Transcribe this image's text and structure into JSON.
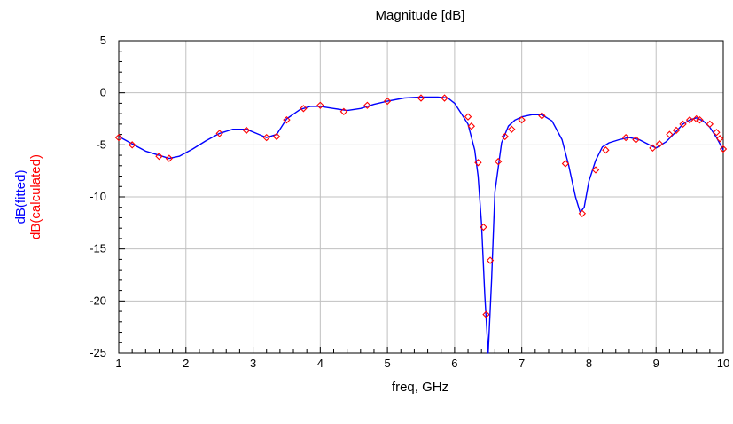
{
  "chart_data": {
    "type": "line",
    "title": "Magnitude [dB]",
    "xlabel": "freq, GHz",
    "ylabel_parts": [
      {
        "text": "dB(fitted)",
        "color": "#0000ff"
      },
      {
        "text": "dB(calculated)",
        "color": "#ff0000"
      }
    ],
    "xlim": [
      1,
      10
    ],
    "ylim": [
      -25,
      5
    ],
    "x_ticks": [
      "1",
      "2",
      "3",
      "4",
      "5",
      "6",
      "7",
      "8",
      "9",
      "10"
    ],
    "y_ticks": [
      "5",
      "0",
      "-5",
      "-10",
      "-15",
      "-20",
      "-25"
    ],
    "grid": true,
    "legend": "none",
    "series": [
      {
        "style": "line",
        "color": "#0000ff",
        "x": [
          1.0,
          1.2,
          1.4,
          1.6,
          1.75,
          1.9,
          2.1,
          2.3,
          2.5,
          2.7,
          2.9,
          3.05,
          3.2,
          3.35,
          3.5,
          3.7,
          3.85,
          4.0,
          4.2,
          4.4,
          4.6,
          4.8,
          5.0,
          5.25,
          5.5,
          5.75,
          5.9,
          6.0,
          6.1,
          6.2,
          6.3,
          6.35,
          6.4,
          6.45,
          6.5,
          6.55,
          6.6,
          6.7,
          6.8,
          6.9,
          7.0,
          7.15,
          7.3,
          7.45,
          7.6,
          7.7,
          7.8,
          7.87,
          7.93,
          8.0,
          8.1,
          8.2,
          8.3,
          8.45,
          8.6,
          8.75,
          8.9,
          9.0,
          9.15,
          9.3,
          9.4,
          9.5,
          9.6,
          9.7,
          9.8,
          9.9,
          10.0
        ],
        "y": [
          -4.2,
          -4.9,
          -5.6,
          -6.0,
          -6.3,
          -6.1,
          -5.4,
          -4.6,
          -3.9,
          -3.5,
          -3.5,
          -3.9,
          -4.3,
          -4.0,
          -2.5,
          -1.6,
          -1.3,
          -1.3,
          -1.5,
          -1.7,
          -1.5,
          -1.1,
          -0.8,
          -0.5,
          -0.4,
          -0.4,
          -0.5,
          -1.0,
          -2.0,
          -3.0,
          -5.5,
          -8.0,
          -12.5,
          -19.5,
          -25.0,
          -18.0,
          -9.5,
          -4.8,
          -3.2,
          -2.6,
          -2.3,
          -2.1,
          -2.1,
          -2.7,
          -4.5,
          -7.0,
          -10.0,
          -11.5,
          -11.0,
          -8.5,
          -6.5,
          -5.2,
          -4.8,
          -4.5,
          -4.3,
          -4.5,
          -5.0,
          -5.3,
          -4.7,
          -3.7,
          -3.0,
          -2.6,
          -2.4,
          -2.7,
          -3.3,
          -4.3,
          -5.5
        ]
      },
      {
        "style": "markers",
        "color": "#ff0000",
        "x": [
          1.0,
          1.2,
          1.6,
          1.75,
          2.5,
          2.9,
          3.2,
          3.35,
          3.5,
          3.75,
          4.0,
          4.35,
          4.7,
          5.0,
          5.5,
          5.85,
          6.2,
          6.25,
          6.35,
          6.43,
          6.47,
          6.53,
          6.65,
          6.75,
          6.85,
          7.0,
          7.3,
          7.65,
          7.9,
          8.1,
          8.25,
          8.55,
          8.7,
          8.95,
          9.05,
          9.2,
          9.3,
          9.4,
          9.5,
          9.6,
          9.65,
          9.8,
          9.9,
          9.95,
          10.0
        ],
        "y": [
          -4.3,
          -5.0,
          -6.1,
          -6.3,
          -3.9,
          -3.6,
          -4.3,
          -4.2,
          -2.6,
          -1.5,
          -1.2,
          -1.8,
          -1.2,
          -0.8,
          -0.5,
          -0.5,
          -2.3,
          -3.2,
          -6.7,
          -12.9,
          -21.3,
          -16.1,
          -6.6,
          -4.2,
          -3.5,
          -2.6,
          -2.2,
          -6.8,
          -11.6,
          -7.4,
          -5.5,
          -4.3,
          -4.5,
          -5.3,
          -4.9,
          -4.0,
          -3.6,
          -3.0,
          -2.6,
          -2.5,
          -2.6,
          -3.0,
          -3.8,
          -4.4,
          -5.4
        ]
      }
    ]
  }
}
